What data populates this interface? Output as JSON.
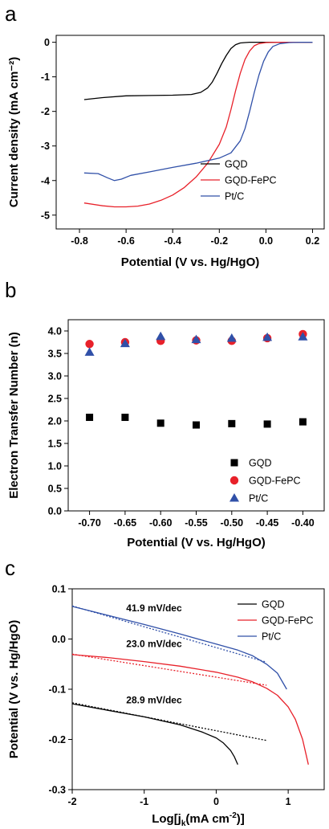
{
  "chart_data": [
    {
      "panel": "a",
      "type": "line",
      "xlabel": "Potential (V vs. Hg/HgO)",
      "ylabel": "Current density (mA cm⁻²)",
      "xlim": [
        -0.9,
        0.25
      ],
      "ylim": [
        -5.4,
        0.2
      ],
      "xticks": [
        -0.8,
        -0.6,
        -0.4,
        -0.2,
        0.0,
        0.2
      ],
      "xtick_labels": [
        "-0.8",
        "-0.6",
        "-0.4",
        "-0.2",
        "0.0",
        "0.2"
      ],
      "yticks": [
        0,
        -1,
        -2,
        -3,
        -4,
        -5
      ],
      "ytick_labels": [
        "0",
        "-1",
        "-2",
        "-3",
        "-4",
        "-5"
      ],
      "legend_position": "lower-right",
      "series": [
        {
          "name": "GQD",
          "color": "#000000",
          "x": [
            -0.78,
            -0.7,
            -0.6,
            -0.5,
            -0.4,
            -0.32,
            -0.28,
            -0.25,
            -0.23,
            -0.21,
            -0.19,
            -0.17,
            -0.15,
            -0.13,
            -0.11,
            -0.09,
            -0.07,
            0.0,
            0.1,
            0.2
          ],
          "y": [
            -1.66,
            -1.6,
            -1.55,
            -1.54,
            -1.53,
            -1.51,
            -1.45,
            -1.32,
            -1.15,
            -0.9,
            -0.62,
            -0.38,
            -0.18,
            -0.07,
            -0.02,
            -0.01,
            0.0,
            0.0,
            0.0,
            0.0
          ]
        },
        {
          "name": "GQD-FePC",
          "color": "#e8212a",
          "x": [
            -0.78,
            -0.7,
            -0.65,
            -0.6,
            -0.55,
            -0.5,
            -0.45,
            -0.4,
            -0.35,
            -0.3,
            -0.25,
            -0.2,
            -0.17,
            -0.15,
            -0.13,
            -0.11,
            -0.09,
            -0.07,
            -0.05,
            -0.03,
            0.0,
            0.05,
            0.1,
            0.2
          ],
          "y": [
            -4.65,
            -4.73,
            -4.76,
            -4.76,
            -4.74,
            -4.68,
            -4.57,
            -4.42,
            -4.2,
            -3.9,
            -3.5,
            -2.95,
            -2.45,
            -1.95,
            -1.4,
            -0.9,
            -0.5,
            -0.25,
            -0.1,
            -0.04,
            -0.01,
            0.0,
            0.0,
            0.0
          ]
        },
        {
          "name": "Pt/C",
          "color": "#3050a8",
          "x": [
            -0.78,
            -0.72,
            -0.68,
            -0.65,
            -0.62,
            -0.58,
            -0.5,
            -0.4,
            -0.3,
            -0.2,
            -0.15,
            -0.11,
            -0.09,
            -0.07,
            -0.05,
            -0.03,
            -0.01,
            0.01,
            0.03,
            0.06,
            0.1,
            0.15,
            0.2
          ],
          "y": [
            -3.78,
            -3.8,
            -3.92,
            -4.0,
            -3.96,
            -3.85,
            -3.75,
            -3.62,
            -3.5,
            -3.35,
            -3.2,
            -2.85,
            -2.5,
            -2.0,
            -1.45,
            -0.95,
            -0.55,
            -0.28,
            -0.12,
            -0.04,
            -0.01,
            0.0,
            0.0
          ]
        }
      ]
    },
    {
      "panel": "b",
      "type": "scatter",
      "xlabel": "Potential (V vs. Hg/HgO)",
      "ylabel": "Electron Transfer Number (n)",
      "xlim": [
        -0.73,
        -0.37
      ],
      "ylim": [
        0.0,
        4.25
      ],
      "xticks": [
        -0.7,
        -0.65,
        -0.6,
        -0.55,
        -0.5,
        -0.45,
        -0.4
      ],
      "xtick_labels": [
        "-0.70",
        "-0.65",
        "-0.60",
        "-0.55",
        "-0.50",
        "-0.45",
        "-0.40"
      ],
      "yticks": [
        0,
        0.5,
        1.0,
        1.5,
        2.0,
        2.5,
        3.0,
        3.5,
        4.0
      ],
      "ytick_labels": [
        "0.0",
        "0.5",
        "1.0",
        "1.5",
        "2.0",
        "2.5",
        "3.0",
        "3.5",
        "4.0"
      ],
      "legend_position": "lower-right",
      "x": [
        -0.7,
        -0.65,
        -0.6,
        -0.55,
        -0.5,
        -0.45,
        -0.4
      ],
      "series": [
        {
          "name": "GQD",
          "marker": "square",
          "color": "#000000",
          "values": [
            2.08,
            2.08,
            1.95,
            1.91,
            1.94,
            1.93,
            1.98
          ]
        },
        {
          "name": "GQD-FePC",
          "marker": "circle",
          "color": "#e8212a",
          "values": [
            3.71,
            3.75,
            3.78,
            3.79,
            3.78,
            3.84,
            3.93
          ]
        },
        {
          "name": "Pt/C",
          "marker": "triangle",
          "color": "#3050a8",
          "values": [
            3.53,
            3.72,
            3.88,
            3.81,
            3.84,
            3.86,
            3.87
          ]
        }
      ]
    },
    {
      "panel": "c",
      "type": "line",
      "xlabel": "Log[j",
      "xlabel_sub": "k",
      "xlabel_rest": "(mA cm",
      "xlabel_sup": "-2",
      "xlabel_end": ")]",
      "ylabel": "Potential (V vs. Hg/HgO)",
      "xlim": [
        -2.0,
        1.5
      ],
      "ylim": [
        -0.3,
        0.1
      ],
      "xticks": [
        -2,
        -1,
        0,
        1
      ],
      "xtick_labels": [
        "-2",
        "-1",
        "0",
        "1"
      ],
      "yticks": [
        0.1,
        0.0,
        -0.1,
        -0.2,
        -0.3
      ],
      "ytick_labels": [
        "0.1",
        "0.0",
        "-0.1",
        "-0.2",
        "-0.3"
      ],
      "legend_position": "top-right",
      "annotations": [
        {
          "text": "41.9 mV/dec",
          "x": -1.25,
          "y": 0.055
        },
        {
          "text": "23.0 mV/dec",
          "x": -1.25,
          "y": -0.016
        },
        {
          "text": "28.9 mV/dec",
          "x": -1.25,
          "y": -0.128
        }
      ],
      "series": [
        {
          "name": "GQD",
          "color": "#000000",
          "x": [
            -2.0,
            -1.5,
            -1.0,
            -0.5,
            -0.2,
            0.0,
            0.1,
            0.2,
            0.25,
            0.3
          ],
          "y": [
            -0.129,
            -0.142,
            -0.155,
            -0.171,
            -0.185,
            -0.197,
            -0.207,
            -0.222,
            -0.234,
            -0.25
          ]
        },
        {
          "name": "GQD-FePC",
          "color": "#e8212a",
          "x": [
            -2.0,
            -1.5,
            -1.0,
            -0.5,
            0.0,
            0.3,
            0.5,
            0.7,
            0.85,
            1.0,
            1.1,
            1.2,
            1.28
          ],
          "y": [
            -0.031,
            -0.037,
            -0.045,
            -0.054,
            -0.066,
            -0.076,
            -0.085,
            -0.098,
            -0.112,
            -0.135,
            -0.16,
            -0.2,
            -0.25
          ]
        },
        {
          "name": "Pt/C",
          "color": "#3050a8",
          "x": [
            -2.0,
            -1.5,
            -1.0,
            -0.5,
            0.0,
            0.3,
            0.5,
            0.7,
            0.85,
            0.98
          ],
          "y": [
            0.065,
            0.047,
            0.029,
            0.01,
            -0.01,
            -0.022,
            -0.033,
            -0.05,
            -0.068,
            -0.1
          ]
        }
      ],
      "fits": [
        {
          "color": "#000000",
          "x": [
            -2.0,
            0.7
          ],
          "y": [
            -0.127,
            -0.202
          ]
        },
        {
          "color": "#e8212a",
          "x": [
            -2.0,
            0.7
          ],
          "y": [
            -0.03,
            -0.092
          ]
        },
        {
          "color": "#3050a8",
          "x": [
            -2.0,
            0.7
          ],
          "y": [
            0.066,
            -0.046
          ]
        }
      ]
    }
  ]
}
